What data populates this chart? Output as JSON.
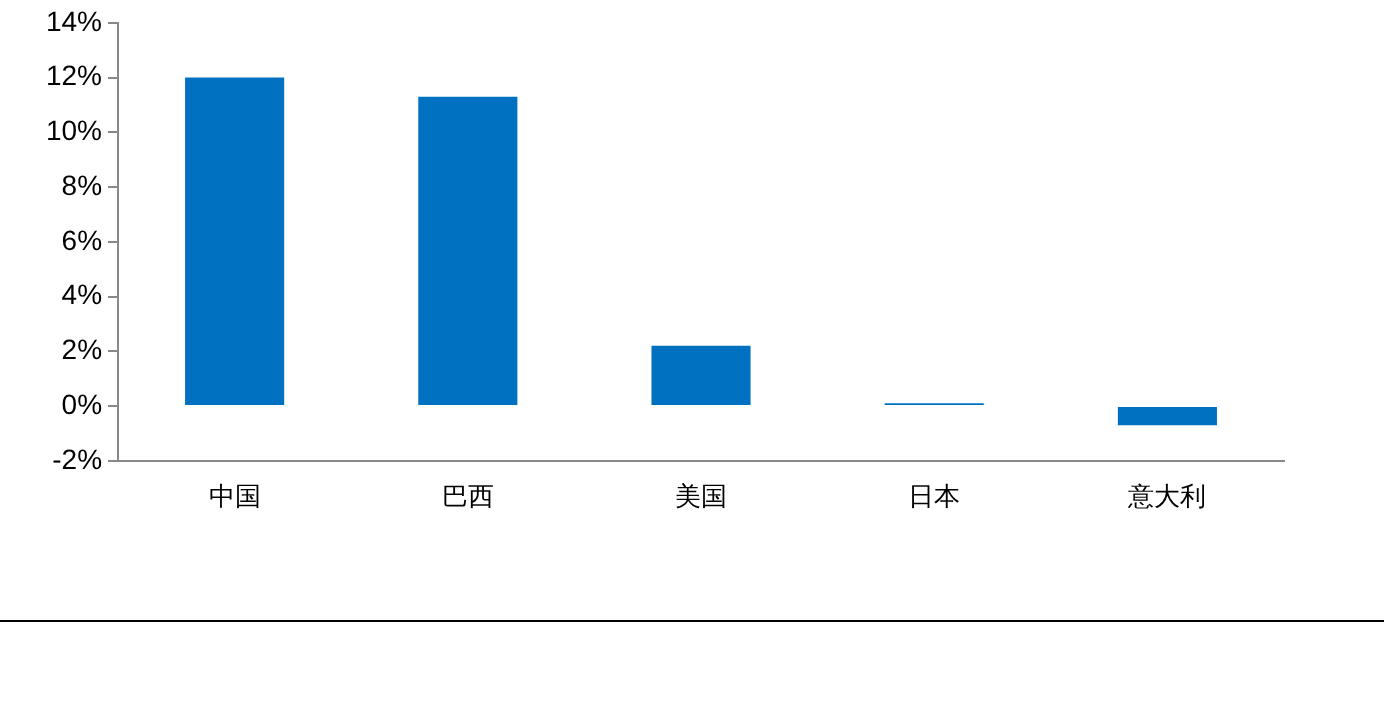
{
  "chart_data": {
    "type": "bar",
    "categories": [
      "中国",
      "巴西",
      "美国",
      "日本",
      "意大利"
    ],
    "values": [
      12.0,
      11.3,
      2.2,
      0.1,
      -0.7
    ],
    "color": "#0070c0",
    "ylim": [
      -2,
      14
    ],
    "yticks": [
      {
        "value": -2,
        "label": "-2%"
      },
      {
        "value": 0,
        "label": "0%"
      },
      {
        "value": 2,
        "label": "2%"
      },
      {
        "value": 4,
        "label": "4%"
      },
      {
        "value": 6,
        "label": "6%"
      },
      {
        "value": 8,
        "label": "8%"
      },
      {
        "value": 10,
        "label": "10%"
      },
      {
        "value": 12,
        "label": "12%"
      },
      {
        "value": 14,
        "label": "14%"
      }
    ],
    "grid": false,
    "legend": false
  }
}
